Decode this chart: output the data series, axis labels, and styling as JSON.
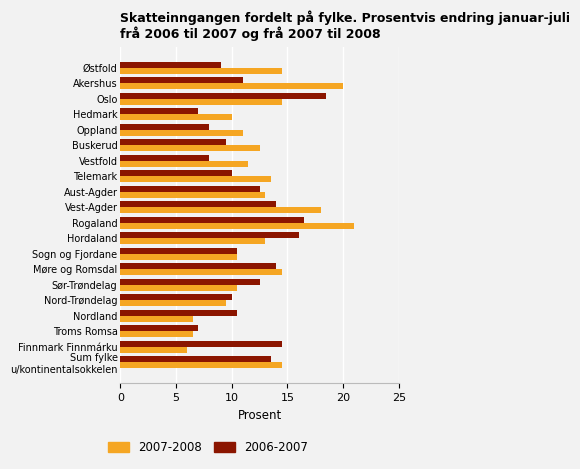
{
  "title": "Skatteinngangen fordelt på fylke. Prosentvis endring januar-juli\nfrå 2006 til 2007 og frå 2007 til 2008",
  "categories": [
    "Østfold",
    "Akershus",
    "Oslo",
    "Hedmark",
    "Oppland",
    "Buskerud",
    "Vestfold",
    "Telemark",
    "Aust-Agder",
    "Vest-Agder",
    "Rogaland",
    "Hordaland",
    "Sogn og Fjordane",
    "Møre og Romsdal",
    "Sør-Trøndelag",
    "Nord-Trøndelag",
    "Nordland",
    "Troms Romsa",
    "Finnmark Finnmárku",
    "Sum fylke\nu/kontinentalsokkelen"
  ],
  "series_2007_2008": [
    14.5,
    20.0,
    14.5,
    10.0,
    11.0,
    12.5,
    11.5,
    13.5,
    13.0,
    18.0,
    21.0,
    13.0,
    10.5,
    14.5,
    10.5,
    9.5,
    6.5,
    6.5,
    6.0,
    14.5
  ],
  "series_2006_2007": [
    9.0,
    11.0,
    18.5,
    7.0,
    8.0,
    9.5,
    8.0,
    10.0,
    12.5,
    14.0,
    16.5,
    16.0,
    10.5,
    14.0,
    12.5,
    10.0,
    10.5,
    7.0,
    14.5,
    13.5
  ],
  "color_2007_2008": "#F5A623",
  "color_2006_2007": "#8B1500",
  "xlabel": "Prosent",
  "xlim": [
    0,
    25
  ],
  "xticks": [
    0,
    5,
    10,
    15,
    20,
    25
  ],
  "legend_labels": [
    "2007-2008",
    "2006-2007"
  ],
  "bar_height": 0.38,
  "background_color": "#f2f2f2"
}
